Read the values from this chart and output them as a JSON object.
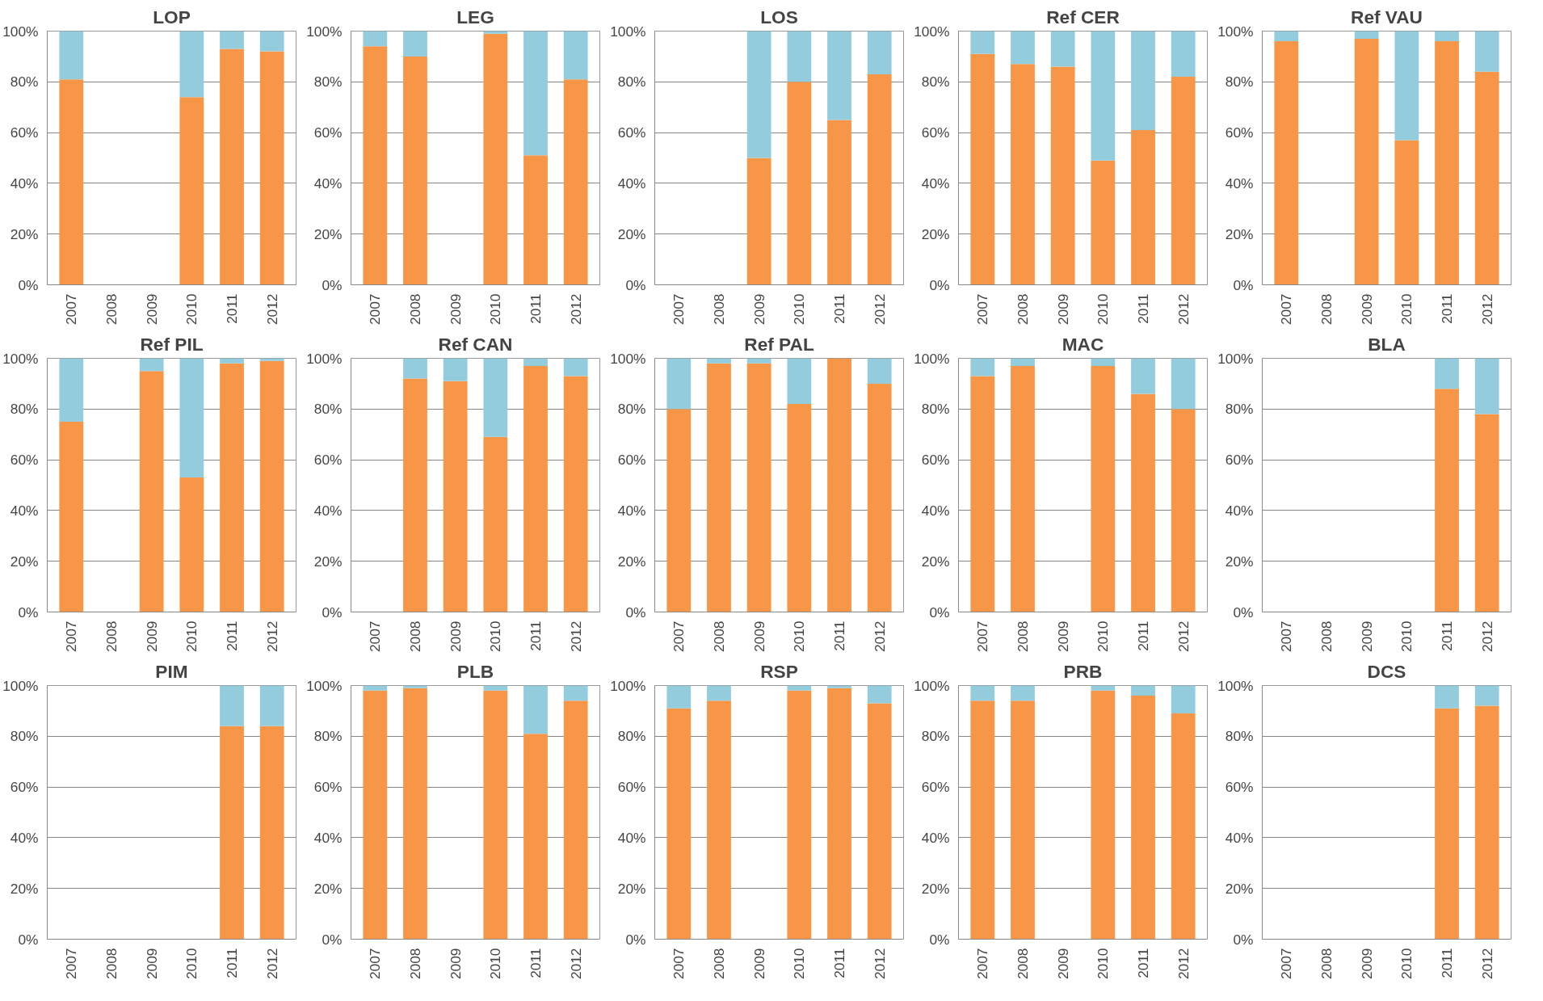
{
  "chart_data": [
    {
      "type": "bar",
      "stacked": true,
      "title": "LOP",
      "categories": [
        "2007",
        "2008",
        "2009",
        "2010",
        "2011",
        "2012"
      ],
      "series": [
        {
          "color": "#f79646",
          "values": [
            81,
            null,
            null,
            74,
            93,
            92
          ]
        },
        {
          "color": "#93cddd",
          "values": [
            19,
            null,
            null,
            26,
            7,
            8
          ]
        }
      ],
      "ylim": [
        0,
        100
      ],
      "yticks": [
        {
          "value": 0,
          "label": "0%"
        },
        {
          "value": 20,
          "label": "20%"
        },
        {
          "value": 40,
          "label": "40%"
        },
        {
          "value": 60,
          "label": "60%"
        },
        {
          "value": 80,
          "label": "80%"
        },
        {
          "value": 100,
          "label": "100%"
        }
      ],
      "grid": "y"
    },
    {
      "type": "bar",
      "stacked": true,
      "title": "LEG",
      "categories": [
        "2007",
        "2008",
        "2009",
        "2010",
        "2011",
        "2012"
      ],
      "series": [
        {
          "color": "#f79646",
          "values": [
            94,
            90,
            null,
            99,
            51,
            81
          ]
        },
        {
          "color": "#93cddd",
          "values": [
            6,
            10,
            null,
            1,
            49,
            19
          ]
        }
      ],
      "ylim": [
        0,
        100
      ],
      "yticks": [
        {
          "value": 0,
          "label": "0%"
        },
        {
          "value": 20,
          "label": "20%"
        },
        {
          "value": 40,
          "label": "40%"
        },
        {
          "value": 60,
          "label": "60%"
        },
        {
          "value": 80,
          "label": "80%"
        },
        {
          "value": 100,
          "label": "100%"
        }
      ],
      "grid": "y"
    },
    {
      "type": "bar",
      "stacked": true,
      "title": "LOS",
      "categories": [
        "2007",
        "2008",
        "2009",
        "2010",
        "2011",
        "2012"
      ],
      "series": [
        {
          "color": "#f79646",
          "values": [
            null,
            null,
            50,
            80,
            65,
            83
          ]
        },
        {
          "color": "#93cddd",
          "values": [
            null,
            null,
            50,
            20,
            35,
            17
          ]
        }
      ],
      "ylim": [
        0,
        100
      ],
      "yticks": [
        {
          "value": 0,
          "label": "0%"
        },
        {
          "value": 20,
          "label": "20%"
        },
        {
          "value": 40,
          "label": "40%"
        },
        {
          "value": 60,
          "label": "60%"
        },
        {
          "value": 80,
          "label": "80%"
        },
        {
          "value": 100,
          "label": "100%"
        }
      ],
      "grid": "y"
    },
    {
      "type": "bar",
      "stacked": true,
      "title": "Ref CER",
      "categories": [
        "2007",
        "2008",
        "2009",
        "2010",
        "2011",
        "2012"
      ],
      "series": [
        {
          "color": "#f79646",
          "values": [
            91,
            87,
            86,
            49,
            61,
            82
          ]
        },
        {
          "color": "#93cddd",
          "values": [
            9,
            13,
            14,
            51,
            39,
            18
          ]
        }
      ],
      "ylim": [
        0,
        100
      ],
      "yticks": [
        {
          "value": 0,
          "label": "0%"
        },
        {
          "value": 20,
          "label": "20%"
        },
        {
          "value": 40,
          "label": "40%"
        },
        {
          "value": 60,
          "label": "60%"
        },
        {
          "value": 80,
          "label": "80%"
        },
        {
          "value": 100,
          "label": "100%"
        }
      ],
      "grid": "y"
    },
    {
      "type": "bar",
      "stacked": true,
      "title": "Ref VAU",
      "categories": [
        "2007",
        "2008",
        "2009",
        "2010",
        "2011",
        "2012"
      ],
      "series": [
        {
          "color": "#f79646",
          "values": [
            96,
            null,
            97,
            57,
            96,
            84
          ]
        },
        {
          "color": "#93cddd",
          "values": [
            4,
            null,
            3,
            43,
            4,
            16
          ]
        }
      ],
      "ylim": [
        0,
        100
      ],
      "yticks": [
        {
          "value": 0,
          "label": "0%"
        },
        {
          "value": 20,
          "label": "20%"
        },
        {
          "value": 40,
          "label": "40%"
        },
        {
          "value": 60,
          "label": "60%"
        },
        {
          "value": 80,
          "label": "80%"
        },
        {
          "value": 100,
          "label": "100%"
        }
      ],
      "grid": "y"
    },
    {
      "type": "bar",
      "stacked": true,
      "title": "Ref PIL",
      "categories": [
        "2007",
        "2008",
        "2009",
        "2010",
        "2011",
        "2012"
      ],
      "series": [
        {
          "color": "#f79646",
          "values": [
            75,
            null,
            95,
            53,
            98,
            99
          ]
        },
        {
          "color": "#93cddd",
          "values": [
            25,
            null,
            5,
            47,
            2,
            1
          ]
        }
      ],
      "ylim": [
        0,
        100
      ],
      "yticks": [
        {
          "value": 0,
          "label": "0%"
        },
        {
          "value": 20,
          "label": "20%"
        },
        {
          "value": 40,
          "label": "40%"
        },
        {
          "value": 60,
          "label": "60%"
        },
        {
          "value": 80,
          "label": "80%"
        },
        {
          "value": 100,
          "label": "100%"
        }
      ],
      "grid": "y"
    },
    {
      "type": "bar",
      "stacked": true,
      "title": "Ref CAN",
      "categories": [
        "2007",
        "2008",
        "2009",
        "2010",
        "2011",
        "2012"
      ],
      "series": [
        {
          "color": "#f79646",
          "values": [
            null,
            92,
            91,
            69,
            97,
            93
          ]
        },
        {
          "color": "#93cddd",
          "values": [
            null,
            8,
            9,
            31,
            3,
            7
          ]
        }
      ],
      "ylim": [
        0,
        100
      ],
      "yticks": [
        {
          "value": 0,
          "label": "0%"
        },
        {
          "value": 20,
          "label": "20%"
        },
        {
          "value": 40,
          "label": "40%"
        },
        {
          "value": 60,
          "label": "60%"
        },
        {
          "value": 80,
          "label": "80%"
        },
        {
          "value": 100,
          "label": "100%"
        }
      ],
      "grid": "y"
    },
    {
      "type": "bar",
      "stacked": true,
      "title": "Ref PAL",
      "categories": [
        "2007",
        "2008",
        "2009",
        "2010",
        "2011",
        "2012"
      ],
      "series": [
        {
          "color": "#f79646",
          "values": [
            80,
            98,
            98,
            82,
            100,
            90
          ]
        },
        {
          "color": "#93cddd",
          "values": [
            20,
            2,
            2,
            18,
            0,
            10
          ]
        }
      ],
      "ylim": [
        0,
        100
      ],
      "yticks": [
        {
          "value": 0,
          "label": "0%"
        },
        {
          "value": 20,
          "label": "20%"
        },
        {
          "value": 40,
          "label": "40%"
        },
        {
          "value": 60,
          "label": "60%"
        },
        {
          "value": 80,
          "label": "80%"
        },
        {
          "value": 100,
          "label": "100%"
        }
      ],
      "grid": "y"
    },
    {
      "type": "bar",
      "stacked": true,
      "title": "MAC",
      "categories": [
        "2007",
        "2008",
        "2009",
        "2010",
        "2011",
        "2012"
      ],
      "series": [
        {
          "color": "#f79646",
          "values": [
            93,
            97,
            null,
            97,
            86,
            80
          ]
        },
        {
          "color": "#93cddd",
          "values": [
            7,
            3,
            null,
            3,
            14,
            20
          ]
        }
      ],
      "ylim": [
        0,
        100
      ],
      "yticks": [
        {
          "value": 0,
          "label": "0%"
        },
        {
          "value": 20,
          "label": "20%"
        },
        {
          "value": 40,
          "label": "40%"
        },
        {
          "value": 60,
          "label": "60%"
        },
        {
          "value": 80,
          "label": "80%"
        },
        {
          "value": 100,
          "label": "100%"
        }
      ],
      "grid": "y"
    },
    {
      "type": "bar",
      "stacked": true,
      "title": "BLA",
      "categories": [
        "2007",
        "2008",
        "2009",
        "2010",
        "2011",
        "2012"
      ],
      "series": [
        {
          "color": "#f79646",
          "values": [
            null,
            null,
            null,
            null,
            88,
            78
          ]
        },
        {
          "color": "#93cddd",
          "values": [
            null,
            null,
            null,
            null,
            12,
            22
          ]
        }
      ],
      "ylim": [
        0,
        100
      ],
      "yticks": [
        {
          "value": 0,
          "label": "0%"
        },
        {
          "value": 20,
          "label": "20%"
        },
        {
          "value": 40,
          "label": "40%"
        },
        {
          "value": 60,
          "label": "60%"
        },
        {
          "value": 80,
          "label": "80%"
        },
        {
          "value": 100,
          "label": "100%"
        }
      ],
      "grid": "y"
    },
    {
      "type": "bar",
      "stacked": true,
      "title": "PIM",
      "categories": [
        "2007",
        "2008",
        "2009",
        "2010",
        "2011",
        "2012"
      ],
      "series": [
        {
          "color": "#f79646",
          "values": [
            null,
            null,
            null,
            null,
            84,
            84
          ]
        },
        {
          "color": "#93cddd",
          "values": [
            null,
            null,
            null,
            null,
            16,
            16
          ]
        }
      ],
      "ylim": [
        0,
        100
      ],
      "yticks": [
        {
          "value": 0,
          "label": "0%"
        },
        {
          "value": 20,
          "label": "20%"
        },
        {
          "value": 40,
          "label": "40%"
        },
        {
          "value": 60,
          "label": "60%"
        },
        {
          "value": 80,
          "label": "80%"
        },
        {
          "value": 100,
          "label": "100%"
        }
      ],
      "grid": "y"
    },
    {
      "type": "bar",
      "stacked": true,
      "title": "PLB",
      "categories": [
        "2007",
        "2008",
        "2009",
        "2010",
        "2011",
        "2012"
      ],
      "series": [
        {
          "color": "#f79646",
          "values": [
            98,
            99,
            null,
            98,
            81,
            94
          ]
        },
        {
          "color": "#93cddd",
          "values": [
            2,
            1,
            null,
            2,
            19,
            6
          ]
        }
      ],
      "ylim": [
        0,
        100
      ],
      "yticks": [
        {
          "value": 0,
          "label": "0%"
        },
        {
          "value": 20,
          "label": "20%"
        },
        {
          "value": 40,
          "label": "40%"
        },
        {
          "value": 60,
          "label": "60%"
        },
        {
          "value": 80,
          "label": "80%"
        },
        {
          "value": 100,
          "label": "100%"
        }
      ],
      "grid": "y"
    },
    {
      "type": "bar",
      "stacked": true,
      "title": "RSP",
      "categories": [
        "2007",
        "2008",
        "2009",
        "2010",
        "2011",
        "2012"
      ],
      "series": [
        {
          "color": "#f79646",
          "values": [
            91,
            94,
            null,
            98,
            99,
            93
          ]
        },
        {
          "color": "#93cddd",
          "values": [
            9,
            6,
            null,
            2,
            1,
            7
          ]
        }
      ],
      "ylim": [
        0,
        100
      ],
      "yticks": [
        {
          "value": 0,
          "label": "0%"
        },
        {
          "value": 20,
          "label": "20%"
        },
        {
          "value": 40,
          "label": "40%"
        },
        {
          "value": 60,
          "label": "60%"
        },
        {
          "value": 80,
          "label": "80%"
        },
        {
          "value": 100,
          "label": "100%"
        }
      ],
      "grid": "y"
    },
    {
      "type": "bar",
      "stacked": true,
      "title": "PRB",
      "categories": [
        "2007",
        "2008",
        "2009",
        "2010",
        "2011",
        "2012"
      ],
      "series": [
        {
          "color": "#f79646",
          "values": [
            94,
            94,
            null,
            98,
            96,
            89
          ]
        },
        {
          "color": "#93cddd",
          "values": [
            6,
            6,
            null,
            2,
            4,
            11
          ]
        }
      ],
      "ylim": [
        0,
        100
      ],
      "yticks": [
        {
          "value": 0,
          "label": "0%"
        },
        {
          "value": 20,
          "label": "20%"
        },
        {
          "value": 40,
          "label": "40%"
        },
        {
          "value": 60,
          "label": "60%"
        },
        {
          "value": 80,
          "label": "80%"
        },
        {
          "value": 100,
          "label": "100%"
        }
      ],
      "grid": "y"
    },
    {
      "type": "bar",
      "stacked": true,
      "title": "DCS",
      "categories": [
        "2007",
        "2008",
        "2009",
        "2010",
        "2011",
        "2012"
      ],
      "series": [
        {
          "color": "#f79646",
          "values": [
            null,
            null,
            null,
            null,
            91,
            92
          ]
        },
        {
          "color": "#93cddd",
          "values": [
            null,
            null,
            null,
            null,
            9,
            8
          ]
        }
      ],
      "ylim": [
        0,
        100
      ],
      "yticks": [
        {
          "value": 0,
          "label": "0%"
        },
        {
          "value": 20,
          "label": "20%"
        },
        {
          "value": 40,
          "label": "40%"
        },
        {
          "value": 60,
          "label": "60%"
        },
        {
          "value": 80,
          "label": "80%"
        },
        {
          "value": 100,
          "label": "100%"
        }
      ],
      "grid": "y"
    }
  ]
}
